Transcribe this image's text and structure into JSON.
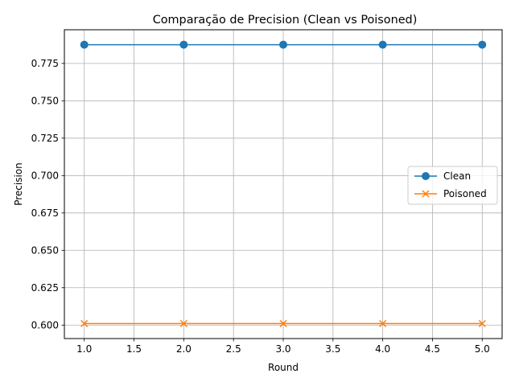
{
  "chart_data": {
    "type": "line",
    "title": "Comparação de Precision (Clean vs Poisoned)",
    "xlabel": "Round",
    "ylabel": "Precision",
    "xlim": [
      0.8,
      5.2
    ],
    "ylim": [
      0.591,
      0.7975
    ],
    "xticks": [
      1.0,
      1.5,
      2.0,
      2.5,
      3.0,
      3.5,
      4.0,
      4.5,
      5.0
    ],
    "xtick_labels": [
      "1.0",
      "1.5",
      "2.0",
      "2.5",
      "3.0",
      "3.5",
      "4.0",
      "4.5",
      "5.0"
    ],
    "yticks": [
      0.6,
      0.625,
      0.65,
      0.675,
      0.7,
      0.725,
      0.75,
      0.775
    ],
    "ytick_labels": [
      "0.600",
      "0.625",
      "0.650",
      "0.675",
      "0.700",
      "0.725",
      "0.750",
      "0.775"
    ],
    "x": [
      1,
      2,
      3,
      4,
      5
    ],
    "series": [
      {
        "name": "Clean",
        "values": [
          0.7875,
          0.7875,
          0.7875,
          0.7875,
          0.7875
        ],
        "color": "#1f77b4",
        "marker": "circle"
      },
      {
        "name": "Poisoned",
        "values": [
          0.601,
          0.601,
          0.601,
          0.601,
          0.601
        ],
        "color": "#ff7f0e",
        "marker": "x"
      }
    ],
    "grid": true,
    "legend_position": "center-right"
  }
}
